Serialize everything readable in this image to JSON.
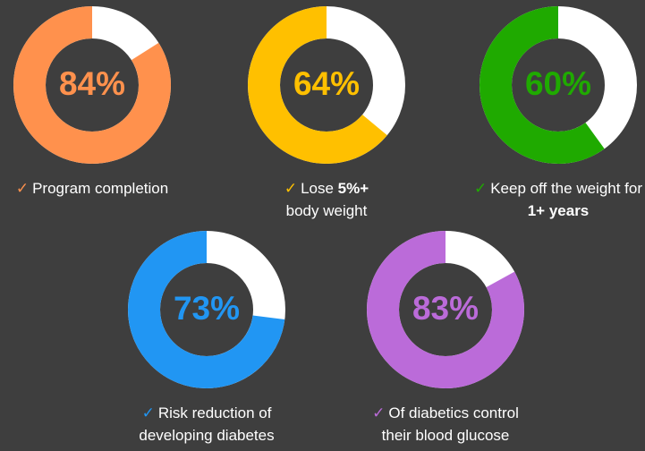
{
  "chart_data": [
    {
      "type": "donut",
      "value": 84,
      "value_label": "84%",
      "color": "#ff914d",
      "remainder_color": "#ffffff",
      "caption": {
        "before": "Program completion",
        "bold": "",
        "after": ""
      }
    },
    {
      "type": "donut",
      "value": 64,
      "value_label": "64%",
      "color": "#ffc000",
      "remainder_color": "#ffffff",
      "caption": {
        "before": "Lose ",
        "bold": "5%+",
        "after": " body weight"
      }
    },
    {
      "type": "donut",
      "value": 60,
      "value_label": "60%",
      "color": "#1faa00",
      "remainder_color": "#ffffff",
      "caption": {
        "before": "Keep off the weight for ",
        "bold": "1+ years",
        "after": ""
      }
    },
    {
      "type": "donut",
      "value": 73,
      "value_label": "73%",
      "color": "#2196f3",
      "remainder_color": "#ffffff",
      "caption": {
        "before": "Risk reduction of developing diabetes",
        "bold": "",
        "after": ""
      }
    },
    {
      "type": "donut",
      "value": 83,
      "value_label": "83%",
      "color": "#bb6bd9",
      "remainder_color": "#ffffff",
      "caption": {
        "before": "Of diabetics control their blood glucose",
        "bold": "",
        "after": ""
      }
    }
  ],
  "check_icon": "checkmark-icon",
  "background_color": "#3e3e3e"
}
